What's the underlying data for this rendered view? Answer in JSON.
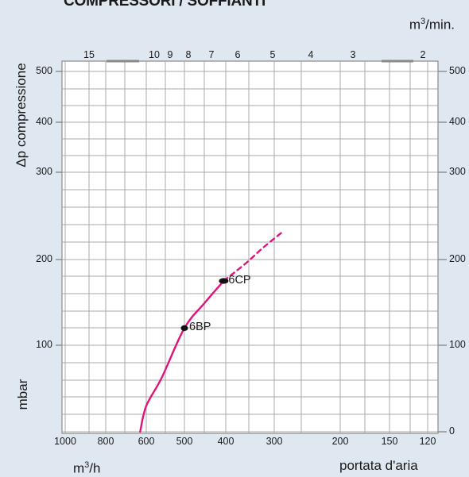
{
  "chart_data": {
    "type": "line",
    "title": "COMPRESSORI / SOFFIANTI",
    "ylabel": "Δp compressione",
    "yunit": "mbar",
    "xlabel": "portata d'aria",
    "x_unit_bottom_base": "m",
    "x_unit_bottom_exp": "3",
    "x_unit_bottom_suffix": "/h",
    "x_unit_top_base": "m",
    "x_unit_top_exp": "3",
    "x_unit_top_suffix": "/min.",
    "x_ticks_bottom": [
      "1000",
      "800",
      "600",
      "500",
      "400",
      "300",
      "200",
      "150",
      "120"
    ],
    "x_ticks_top": [
      "15",
      "10",
      "9",
      "8",
      "7",
      "6",
      "5",
      "4",
      "3",
      "2"
    ],
    "y_ticks_left": [
      "500",
      "400",
      "300",
      "200",
      "100"
    ],
    "y_ticks_right": [
      "500",
      "400",
      "300",
      "200",
      "100",
      "0"
    ],
    "grid": true,
    "series": [
      {
        "color": "#e0137a",
        "style": "solid",
        "points": [
          [
            630,
            0
          ],
          [
            600,
            30
          ],
          [
            560,
            62
          ],
          [
            500,
            120
          ],
          [
            450,
            150
          ],
          [
            405,
            175
          ]
        ]
      },
      {
        "color": "#e0137a",
        "style": "dashed",
        "points": [
          [
            405,
            175
          ],
          [
            360,
            195
          ],
          [
            320,
            215
          ],
          [
            285,
            233
          ]
        ]
      }
    ],
    "markers": [
      {
        "label": "6BP",
        "x": 500,
        "y": 120
      },
      {
        "label": "6CP",
        "x": 405,
        "y": 175
      }
    ]
  }
}
